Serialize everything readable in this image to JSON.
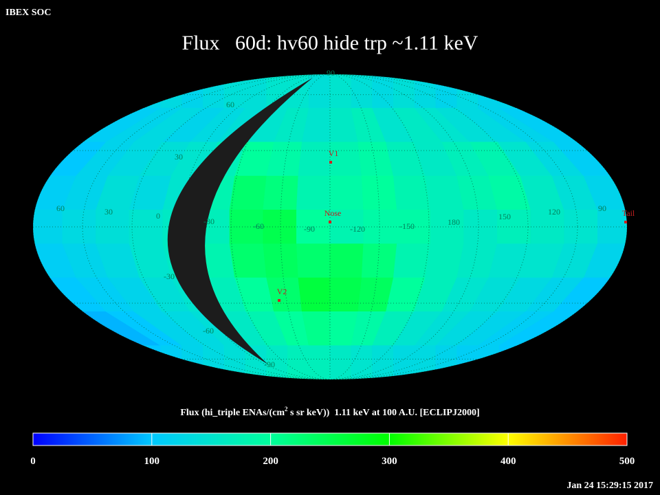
{
  "header": {
    "source": "IBEX SOC",
    "title": "Flux   60d: hv60 hide trp ~1.11 keV",
    "timestamp": "Jan 24 15:29:15 2017"
  },
  "sky_map": {
    "grid_labels": [
      "90",
      "60",
      "30",
      "60",
      "30",
      "0",
      "-30",
      "-60",
      "-90",
      "-120",
      "-150",
      "180",
      "150",
      "120",
      "90",
      "-30",
      "-60",
      "-90"
    ],
    "markers": [
      "V1",
      "Nose",
      "Tail",
      "V2"
    ],
    "flux_grid": [
      [
        120,
        130,
        120,
        130,
        140,
        140,
        150,
        150,
        140,
        150,
        140,
        130,
        140,
        130,
        120,
        130,
        120,
        120
      ],
      [
        110,
        120,
        130,
        120,
        130,
        140,
        150,
        160,
        150,
        160,
        170,
        150,
        160,
        150,
        140,
        130,
        120,
        110
      ],
      [
        100,
        120,
        130,
        140,
        150,
        170,
        200,
        190,
        170,
        180,
        190,
        170,
        160,
        170,
        180,
        150,
        130,
        110
      ],
      [
        110,
        120,
        140,
        130,
        150,
        180,
        230,
        220,
        180,
        190,
        200,
        180,
        170,
        180,
        190,
        160,
        140,
        120
      ],
      [
        120,
        130,
        140,
        150,
        160,
        170,
        240,
        250,
        200,
        180,
        190,
        190,
        170,
        160,
        170,
        160,
        150,
        130
      ],
      [
        110,
        120,
        130,
        150,
        160,
        180,
        230,
        240,
        230,
        240,
        220,
        180,
        170,
        160,
        150,
        150,
        140,
        120
      ],
      [
        100,
        110,
        120,
        140,
        150,
        170,
        200,
        230,
        260,
        250,
        240,
        200,
        170,
        150,
        140,
        130,
        120,
        100
      ],
      [
        90,
        100,
        120,
        130,
        140,
        160,
        180,
        200,
        210,
        200,
        190,
        170,
        150,
        140,
        130,
        120,
        110,
        100
      ],
      [
        100,
        110,
        120,
        130,
        140,
        150,
        160,
        170,
        170,
        160,
        150,
        140,
        130,
        130,
        120,
        110,
        110,
        100
      ]
    ]
  },
  "colorbar": {
    "label_start": "Flux (hi_triple ENAs/(cm",
    "label_sup": "2",
    "label_end": " s sr keV))  1.11 keV at 100 A.U. [ECLIPJ2000]",
    "lim": [
      0,
      500
    ],
    "ticks": [
      0,
      100,
      200,
      300,
      400,
      500
    ],
    "stops": [
      {
        "value": 0,
        "color": "#0000ff"
      },
      {
        "value": 100,
        "color": "#00c8ff"
      },
      {
        "value": 200,
        "color": "#00ff9c"
      },
      {
        "value": 300,
        "color": "#00ff00"
      },
      {
        "value": 400,
        "color": "#ffff00"
      },
      {
        "value": 500,
        "color": "#ff2000"
      }
    ]
  }
}
